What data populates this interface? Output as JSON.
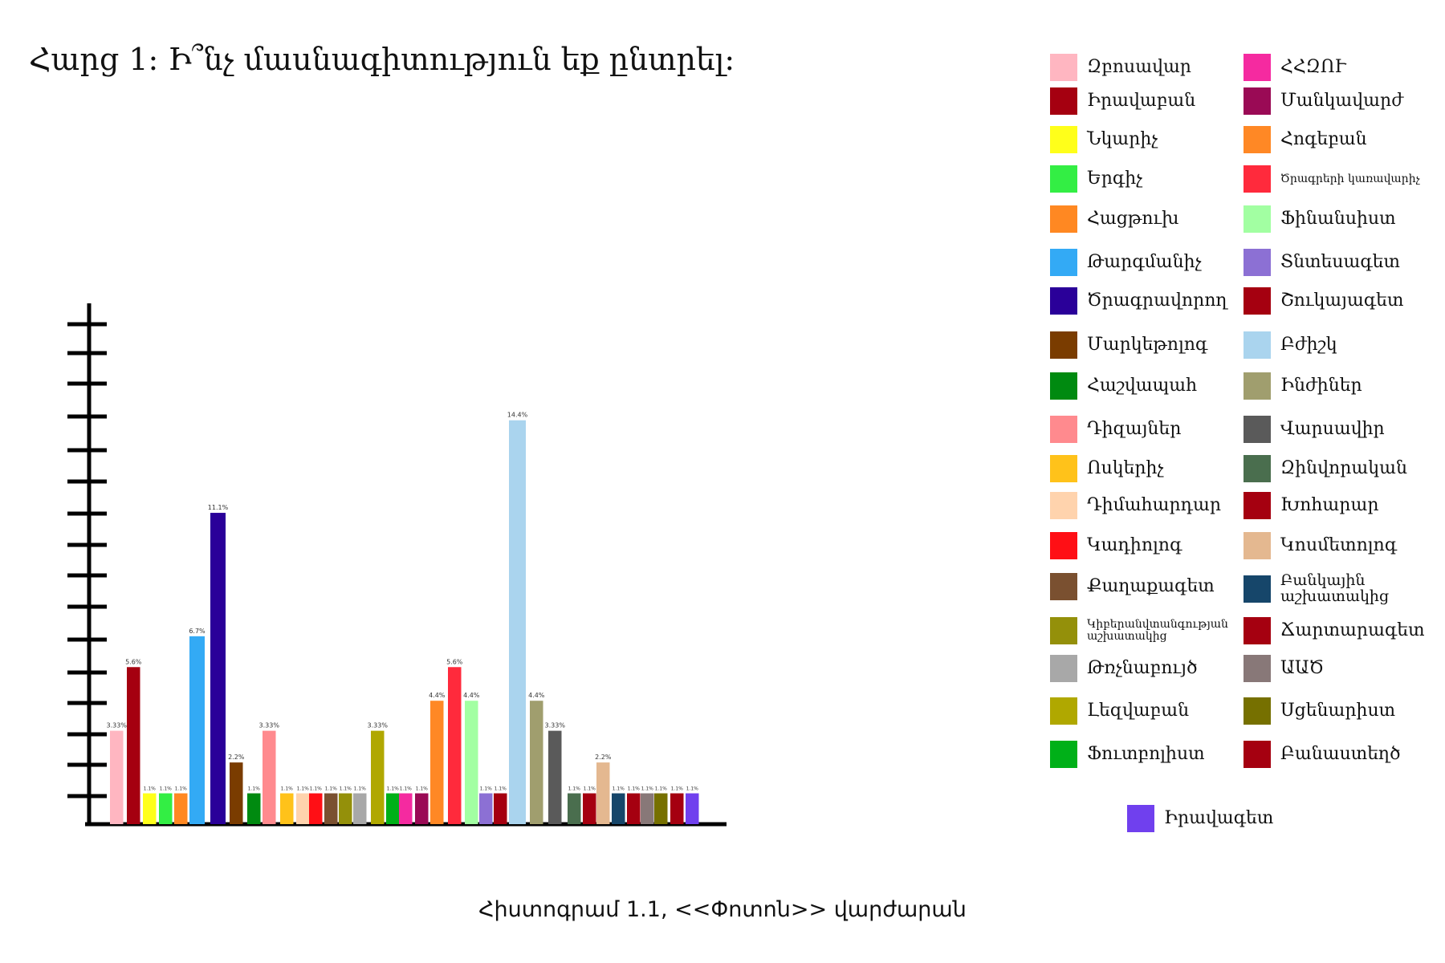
{
  "title": "Հարց 1: Ի՞նչ մասնագիտություն եք ընտրել:",
  "caption": "Հիստոգրամ 1.1, <<Փոտոն>> վարժարան",
  "chart_data": {
    "type": "bar",
    "categories": [
      "Զբոսավար",
      "Իրավաբան",
      "Նկարիչ",
      "Երգիչ",
      "Հացթուխ",
      "Թարգմանիչ",
      "Ծրագրավորող",
      "Մարկեթոլոգ",
      "Հաշվապահ",
      "Դիզայներ",
      "Ոսկերիչ",
      "Դիմահարդար",
      "Կադիոլոգ",
      "Քաղաքագետ",
      "Կիբերանվտանգության աշխատակից",
      "Թռչնաբույծ",
      "Լեզվաբան",
      "Ֆուտբոլիստ",
      "ՀՀԶՈՒ",
      "Մանկավարժ",
      "Հոգեբան",
      "Ծրագրերի կառավարիչ",
      "Ֆինանսիստ",
      "Տնտեսագետ",
      "Շուկայագետ",
      "Բժիշկ",
      "Ինժիներ",
      "Վարսավիր",
      "Զինվորական",
      "Խոհարար",
      "Կոսմետոլոգ",
      "Բանկային աշխատակից",
      "Ճարտարագետ",
      "ԱԱԾ",
      "Սցենարիստ",
      "Բանաստեղծ",
      "Իրավագետ"
    ],
    "values": [
      3.33,
      5.6,
      1.1,
      1.1,
      1.1,
      6.7,
      11.1,
      2.2,
      1.1,
      3.33,
      1.1,
      1.1,
      1.1,
      1.1,
      1.1,
      1.1,
      3.33,
      1.1,
      1.1,
      1.1,
      4.4,
      5.6,
      4.4,
      1.1,
      1.1,
      14.4,
      4.4,
      3.33,
      1.1,
      1.1,
      2.2,
      1.1,
      1.1,
      1.1,
      1.1,
      1.1,
      1.1
    ],
    "value_labels": [
      "3.33%",
      "5.6%",
      "1.1%",
      "1.1%",
      "1.1%",
      "6.7%",
      "11.1%",
      "2.2%",
      "1.1%",
      "3.33%",
      "1.1%",
      "1.1%",
      "1.1%",
      "1.1%",
      "1.1%",
      "1.1%",
      "3.33%",
      "1.1%",
      "1.1%",
      "1.1%",
      "4.4%",
      "5.6%",
      "4.4%",
      "1.1%",
      "1.1%",
      "14.4%",
      "4.4%",
      "3.33%",
      "1.1%",
      "1.1%",
      "2.2%",
      "1.1%",
      "1.1%",
      "1.1%",
      "1.1%",
      "1.1%",
      "1.1%"
    ],
    "colors": [
      "#ffb6c1",
      "#a50010",
      "#ffff1a",
      "#33ee44",
      "#ff8822",
      "#33aaf5",
      "#2a0099",
      "#7a3c00",
      "#008a10",
      "#ff8a8e",
      "#ffc21a",
      "#ffd3ad",
      "#ff0f15",
      "#7a5030",
      "#94900a",
      "#a8a8a8",
      "#b0a800",
      "#00b018",
      "#f52aa0",
      "#9a0a55",
      "#ff8825",
      "#ff2a3c",
      "#a2ffa2",
      "#8c70d4",
      "#a50010",
      "#aad4ee",
      "#a09e6e",
      "#5a5a5a",
      "#4a6e4e",
      "#a50010",
      "#e4b890",
      "#16466a",
      "#a50010",
      "#887878",
      "#767000",
      "#a50010",
      "#7040ee"
    ],
    "ylim": [
      0,
      16
    ],
    "grid": false,
    "legend_position": "right"
  },
  "legend": [
    {
      "label": "Զբոսավար",
      "color": "#ffb6c1"
    },
    {
      "label": "Իրավաբան",
      "color": "#a50010"
    },
    {
      "label": "Նկարիչ",
      "color": "#ffff1a"
    },
    {
      "label": "Երգիչ",
      "color": "#33ee44"
    },
    {
      "label": "Հացթուխ",
      "color": "#ff8822"
    },
    {
      "label": "Թարգմանիչ",
      "color": "#33aaf5"
    },
    {
      "label": "Ծրագրավորող",
      "color": "#2a0099"
    },
    {
      "label": "Մարկեթոլոգ",
      "color": "#7a3c00"
    },
    {
      "label": "Հաշվապահ",
      "color": "#008a10"
    },
    {
      "label": "Դիզայներ",
      "color": "#ff8a8e"
    },
    {
      "label": "Ոսկերիչ",
      "color": "#ffc21a"
    },
    {
      "label": "Դիմահարդար",
      "color": "#ffd3ad"
    },
    {
      "label": "Կադիոլոգ",
      "color": "#ff0f15"
    },
    {
      "label": "Քաղաքագետ",
      "color": "#7a5030"
    },
    {
      "label": "Կիբերանվտանգության աշխատակից",
      "color": "#94900a"
    },
    {
      "label": "Թռչնաբույծ",
      "color": "#a8a8a8"
    },
    {
      "label": "Լեզվաբան",
      "color": "#b0a800"
    },
    {
      "label": "Ֆուտբոլիստ",
      "color": "#00b018"
    },
    {
      "label": "ՀՀԶՈՒ",
      "color": "#f52aa0"
    },
    {
      "label": "Մանկավարժ",
      "color": "#9a0a55"
    },
    {
      "label": "Հոգեբան",
      "color": "#ff8825"
    },
    {
      "label": "Ծրագրերի կառավարիչ",
      "color": "#ff2a3c"
    },
    {
      "label": "Ֆինանսիստ",
      "color": "#a2ffa2"
    },
    {
      "label": "Տնտեսագետ",
      "color": "#8c70d4"
    },
    {
      "label": "Շուկայագետ",
      "color": "#a50010"
    },
    {
      "label": "Բժիշկ",
      "color": "#aad4ee"
    },
    {
      "label": "Ինժիներ",
      "color": "#a09e6e"
    },
    {
      "label": "Վարսավիր",
      "color": "#5a5a5a"
    },
    {
      "label": "Զինվորական",
      "color": "#4a6e4e"
    },
    {
      "label": "Խոհարար",
      "color": "#a50010"
    },
    {
      "label": "Կոսմետոլոգ",
      "color": "#e4b890"
    },
    {
      "label": "Բանկային աշխատակից",
      "color": "#16466a"
    },
    {
      "label": "Ճարտարագետ",
      "color": "#a50010"
    },
    {
      "label": "ԱԱԾ",
      "color": "#887878"
    },
    {
      "label": "Սցենարիստ",
      "color": "#767000"
    },
    {
      "label": "Բանաստեղծ",
      "color": "#a50010"
    },
    {
      "label": "Իրավագետ",
      "color": "#7040ee"
    }
  ]
}
